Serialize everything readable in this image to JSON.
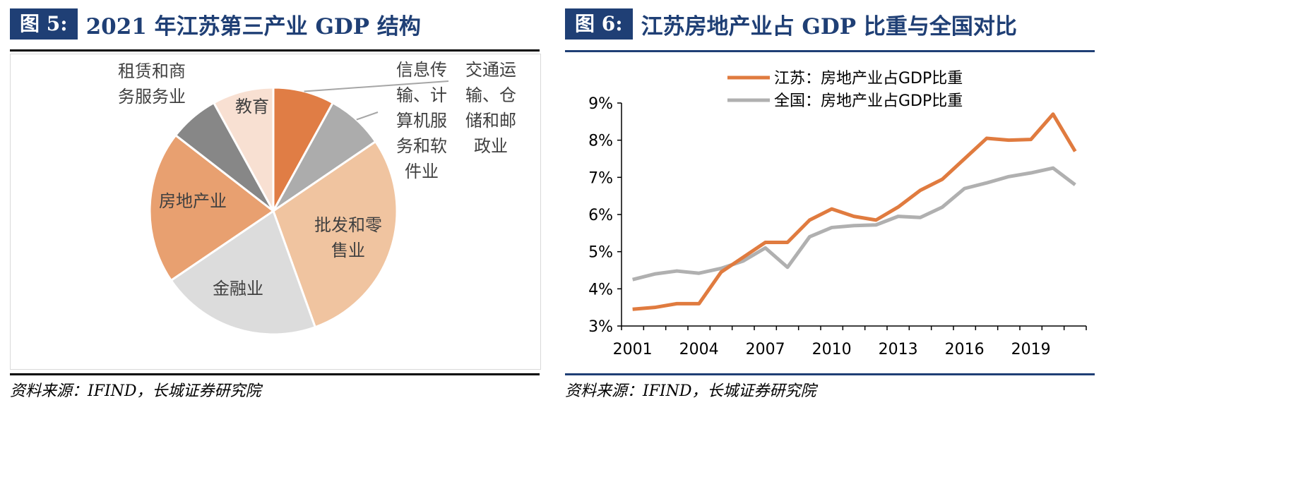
{
  "left": {
    "fig_label": "图 5:",
    "title": "2021 年江苏第三产业 GDP 结构",
    "source": "资料来源：IFIND，长城证券研究院"
  },
  "right": {
    "fig_label": "图 6:",
    "title": "江苏房地产业占 GDP 比重与全国对比",
    "source": "资料来源：IFIND，长城证券研究院"
  },
  "chart_data": [
    {
      "type": "pie",
      "title": "2021 年江苏第三产业 GDP 结构",
      "slices": [
        {
          "name": "交通运输、仓储和邮政业",
          "lines": [
            "交通运",
            "输、仓",
            "储和邮",
            "政业"
          ],
          "value": 8.0,
          "color": "#e07d45"
        },
        {
          "name": "信息传输、计算机服务和软件业",
          "lines": [
            "信息传",
            "输、计",
            "算机服",
            "务和软",
            "件业"
          ],
          "value": 7.5,
          "color": "#acacac"
        },
        {
          "name": "批发和零售业",
          "lines": [
            "批发和零",
            "售业"
          ],
          "value": 29.0,
          "color": "#f0c4a0"
        },
        {
          "name": "金融业",
          "lines": [
            "金融业"
          ],
          "value": 21.0,
          "color": "#dcdcdc"
        },
        {
          "name": "房地产业",
          "lines": [
            "房地产业"
          ],
          "value": 20.0,
          "color": "#e8a070"
        },
        {
          "name": "租赁和商务服务业",
          "lines": [
            "租赁和商",
            "务服务业"
          ],
          "value": 6.5,
          "color": "#878787"
        },
        {
          "name": "教育",
          "lines": [
            "教育"
          ],
          "value": 8.0,
          "color": "#f8e0d2"
        }
      ]
    },
    {
      "type": "line",
      "title": "江苏房地产业占 GDP 比重与全国对比",
      "x": [
        2001,
        2002,
        2003,
        2004,
        2005,
        2006,
        2007,
        2008,
        2009,
        2010,
        2011,
        2012,
        2013,
        2014,
        2015,
        2016,
        2017,
        2018,
        2019,
        2020,
        2021
      ],
      "xticks": [
        "2001",
        "2004",
        "2007",
        "2010",
        "2013",
        "2016",
        "2019"
      ],
      "yticks": [
        "3%",
        "4%",
        "5%",
        "6%",
        "7%",
        "8%",
        "9%"
      ],
      "ylim": [
        3,
        9
      ],
      "legend_position": "top-left",
      "series": [
        {
          "name": "江苏：房地产业占GDP比重",
          "color": "#e07b3f",
          "values": [
            3.45,
            3.5,
            3.6,
            3.6,
            4.45,
            4.85,
            5.25,
            5.25,
            5.85,
            6.15,
            5.95,
            5.85,
            6.2,
            6.65,
            6.95,
            7.5,
            8.05,
            8.0,
            8.02,
            8.7,
            7.7
          ]
        },
        {
          "name": "全国：房地产业占GDP比重",
          "color": "#b0b0b0",
          "values": [
            4.25,
            4.4,
            4.48,
            4.42,
            4.55,
            4.75,
            5.1,
            4.58,
            5.4,
            5.65,
            5.7,
            5.72,
            5.95,
            5.92,
            6.2,
            6.7,
            6.85,
            7.02,
            7.12,
            7.25,
            6.8
          ]
        }
      ]
    }
  ]
}
